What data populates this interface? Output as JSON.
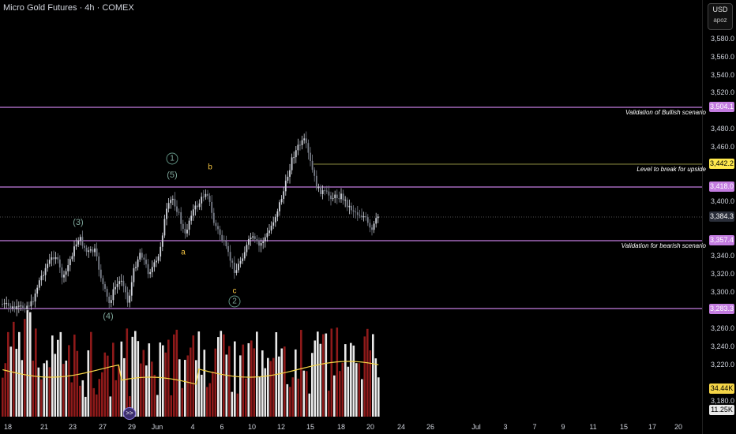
{
  "header": {
    "title": "Micro Gold Futures · 4h · COMEX"
  },
  "currency": {
    "code": "USD",
    "account": "apoz"
  },
  "y_axis_labels": [
    "3,580.0",
    "3,560.0",
    "3,540.0",
    "3,520.0",
    "3,480.0",
    "3,460.0",
    "3,400.0",
    "3,340.0",
    "3,320.0",
    "3,300.0",
    "3,260.0",
    "3,240.0",
    "3,220.0",
    "3,180.0"
  ],
  "x_axis_labels": [
    "18",
    "21",
    "23",
    "27",
    "29",
    "Jun",
    "4",
    "6",
    "10",
    "12",
    "15",
    "18",
    "20",
    "24",
    "26",
    "Jul",
    "3",
    "7",
    "9",
    "11",
    "15",
    "17",
    "20"
  ],
  "levels": [
    {
      "price": "3,504.1",
      "label": "Validation of Bullish scenario",
      "color": "#c37ce0"
    },
    {
      "price": "3,442.2",
      "label": "Level to break for upside",
      "color": "#ffe94d"
    },
    {
      "price": "3,418.0",
      "label": "",
      "color": "#c37ce0"
    },
    {
      "price": "3,357.4",
      "label": "Validation for bearish scenario",
      "color": "#c37ce0"
    },
    {
      "price": "3,283.3",
      "label": "",
      "color": "#c37ce0"
    }
  ],
  "current_price": "3,384.3",
  "volume_ma": "34.44K",
  "volume_last": "11.25K",
  "waves": [
    {
      "text": "(3)",
      "style": "paren"
    },
    {
      "text": "(4)",
      "style": "paren"
    },
    {
      "text": "1",
      "style": "circle"
    },
    {
      "text": "(5)",
      "style": "paren"
    },
    {
      "text": "a",
      "style": "abc"
    },
    {
      "text": "b",
      "style": "abc"
    },
    {
      "text": "c",
      "style": "abc"
    },
    {
      "text": "2",
      "style": "circle"
    }
  ],
  "badge": ">>",
  "colors": {
    "up": "#d1d4dc",
    "down": "#7a7f8a",
    "vol_up": "#e9e9e9",
    "vol_down": "#8f1a1a",
    "ma": "#f5d547",
    "level": "#c37ce0"
  }
}
